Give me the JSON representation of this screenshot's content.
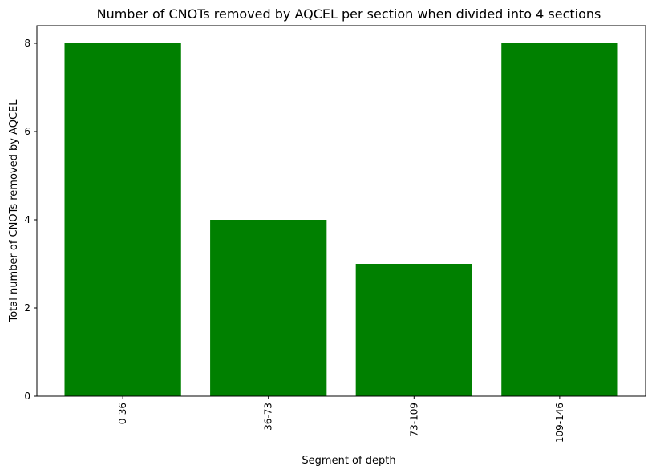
{
  "chart_data": {
    "type": "bar",
    "title": "Number of CNOTs removed by AQCEL per section when divided into 4 sections",
    "xlabel": "Segment of depth",
    "ylabel": "Total number of CNOTs removed by AQCEL",
    "categories": [
      "0-36",
      "36-73",
      "73-109",
      "109-146"
    ],
    "values": [
      8,
      4,
      3,
      8
    ],
    "ylim": [
      0,
      8.4
    ],
    "yticks": [
      0,
      2,
      4,
      6,
      8
    ],
    "bar_color": "#008000",
    "grid": false,
    "x_tick_rotation": "vertical"
  }
}
